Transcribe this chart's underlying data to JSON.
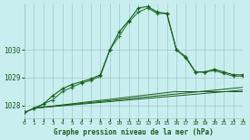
{
  "title": "Graphe pression niveau de la mer (hPa)",
  "background_color": "#c8eef0",
  "grid_color": "#9bbfbf",
  "line_color_dark": "#1a5c1a",
  "line_color_medium": "#2e7d2e",
  "xlim": [
    0,
    23
  ],
  "ylim": [
    1027.55,
    1031.65
  ],
  "yticks": [
    1028,
    1029,
    1030
  ],
  "xticks": [
    0,
    1,
    2,
    3,
    4,
    5,
    6,
    7,
    8,
    9,
    10,
    11,
    12,
    13,
    14,
    15,
    16,
    17,
    18,
    19,
    20,
    21,
    22,
    23
  ],
  "series_main": [
    1027.75,
    1027.9,
    1028.05,
    1028.35,
    1028.6,
    1028.75,
    1028.85,
    1028.95,
    1029.1,
    1030.0,
    1030.65,
    1031.05,
    1031.5,
    1031.55,
    1031.35,
    1031.3,
    1030.0,
    1029.75,
    1029.2,
    1029.2,
    1029.3,
    1029.2,
    1029.1,
    1029.1
  ],
  "series_alt": [
    1027.75,
    1027.88,
    1028.05,
    1028.2,
    1028.5,
    1028.65,
    1028.8,
    1028.9,
    1029.05,
    1030.0,
    1030.5,
    1031.0,
    1031.35,
    1031.5,
    1031.3,
    1031.3,
    1030.0,
    1029.7,
    1029.2,
    1029.2,
    1029.25,
    1029.15,
    1029.05,
    1029.05
  ],
  "line1": [
    [
      1,
      1027.9
    ],
    [
      23,
      1028.65
    ]
  ],
  "line2": [
    [
      1,
      1027.9
    ],
    [
      23,
      1028.55
    ]
  ],
  "line3": [
    [
      1,
      1027.9
    ],
    [
      23,
      1028.45
    ]
  ],
  "line3_flat_end": 16
}
